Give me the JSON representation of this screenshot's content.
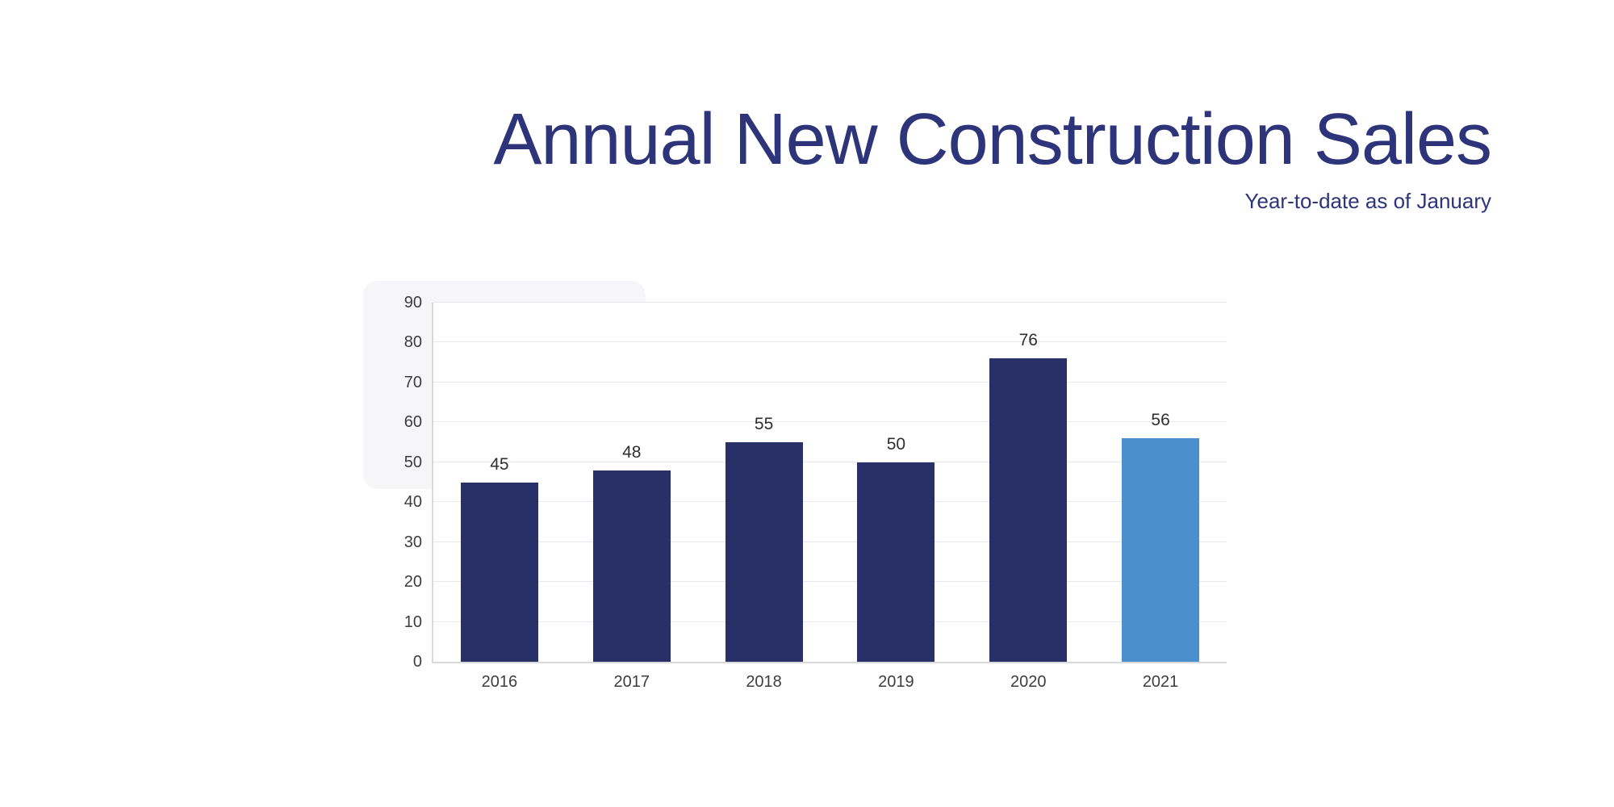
{
  "header": {
    "title": "Annual New Construction Sales",
    "subtitle": "Year-to-date as of January"
  },
  "colors": {
    "title_text": "#2d3479",
    "subtitle_text": "#2d3479",
    "bar_navy": "#283067",
    "bar_highlight_blue": "#4b8fce",
    "gridline": "#e7e9f0",
    "axis_line": "#d8d9dd",
    "tick_text": "#3d3d3d",
    "value_text": "#2f2f2f"
  },
  "chart_data": {
    "type": "bar",
    "title": "Annual New Construction Sales",
    "subtitle": "Year-to-date as of January",
    "categories": [
      "2016",
      "2017",
      "2018",
      "2019",
      "2020",
      "2021"
    ],
    "values": [
      45,
      48,
      55,
      50,
      76,
      56
    ],
    "bar_colors": [
      "#283067",
      "#283067",
      "#283067",
      "#283067",
      "#283067",
      "#4b8fce"
    ],
    "data_labels": [
      "45",
      "48",
      "55",
      "50",
      "76",
      "56"
    ],
    "xlabel": "",
    "ylabel": "",
    "ylim": [
      0,
      90
    ],
    "ytick_step": 10,
    "yticks": [
      0,
      10,
      20,
      30,
      40,
      50,
      60,
      70,
      80,
      90
    ],
    "grid": true,
    "legend": false,
    "legend_position": "none"
  }
}
